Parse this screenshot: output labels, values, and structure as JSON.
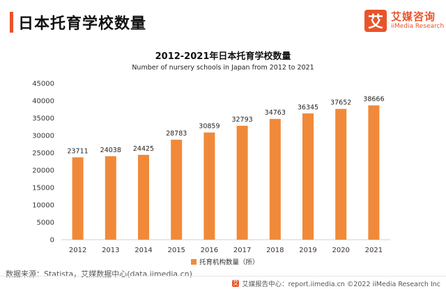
{
  "header": {
    "title": "日本托育学校数量",
    "logo_mark": "艾",
    "logo_cn": "艾媒咨询",
    "logo_en": "iiMedia Research"
  },
  "colors": {
    "accent": "#e8542a",
    "bar": "#f08a3a"
  },
  "chart_data": {
    "type": "bar",
    "title": "2012-2021年日本托育学校数量",
    "subtitle": "Number of nursery schools in Japan from 2012 to 2021",
    "categories": [
      "2012",
      "2013",
      "2014",
      "2015",
      "2016",
      "2017",
      "2018",
      "2019",
      "2020",
      "2021"
    ],
    "series": [
      {
        "name": "托育机构数量（所）",
        "values": [
          23711,
          24038,
          24425,
          28783,
          30859,
          32793,
          34763,
          36345,
          37652,
          38666
        ]
      }
    ],
    "ylim": [
      0,
      45000
    ],
    "yticks": [
      0,
      5000,
      10000,
      15000,
      20000,
      25000,
      30000,
      35000,
      40000,
      45000
    ],
    "grid": false,
    "data_labels": true,
    "legend_position": "bottom-center"
  },
  "source": "数据来源：Statista，艾媒数据中心(data.iimedia.cn)",
  "footer": {
    "icon": "艾",
    "text": "艾媒报告中心：report.iimedia.cn  ©2022  iiMedia Research  Inc"
  }
}
